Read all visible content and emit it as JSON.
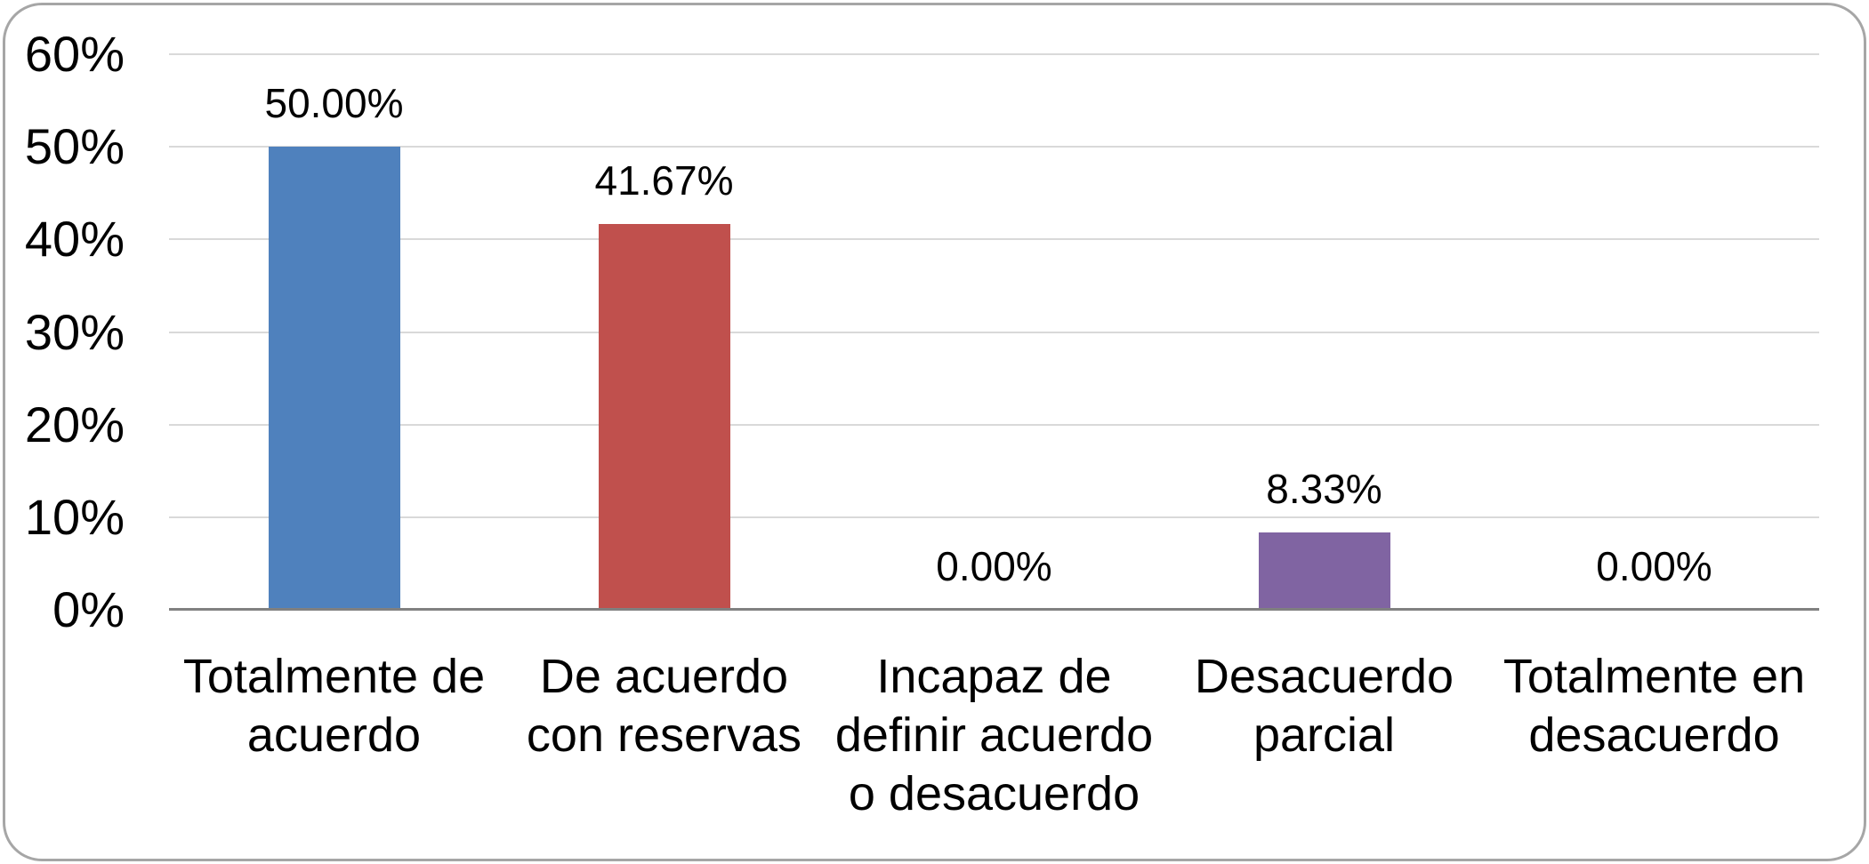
{
  "chart_data": {
    "type": "bar",
    "title": "",
    "xlabel": "",
    "ylabel": "",
    "categories": [
      "Totalmente de\nacuerdo",
      "De acuerdo\ncon reservas",
      "Incapaz de\ndefinir acuerdo\no desacuerdo",
      "Desacuerdo\nparcial",
      "Totalmente en\ndesacuerdo"
    ],
    "values": [
      50.0,
      41.67,
      0.0,
      8.33,
      0.0
    ],
    "data_labels": [
      "50.00%",
      "41.67%",
      "0.00%",
      "8.33%",
      "0.00%"
    ],
    "bar_colors": [
      "#4F81BD",
      "#C0504D",
      null,
      "#8064A2",
      null
    ],
    "y_ticks": [
      {
        "label": "0%",
        "value": 0
      },
      {
        "label": "10%",
        "value": 10
      },
      {
        "label": "20%",
        "value": 20
      },
      {
        "label": "30%",
        "value": 30
      },
      {
        "label": "40%",
        "value": 40
      },
      {
        "label": "50%",
        "value": 50
      },
      {
        "label": "60%",
        "value": 60
      }
    ],
    "ylim": [
      0,
      60
    ],
    "grid": true,
    "legend": "none"
  },
  "colors": {
    "background": "#FFFFFF",
    "gridline": "#D9D9D9",
    "axis_line": "#808080",
    "chart_border": "#A6A6A6",
    "text": "#000000"
  }
}
